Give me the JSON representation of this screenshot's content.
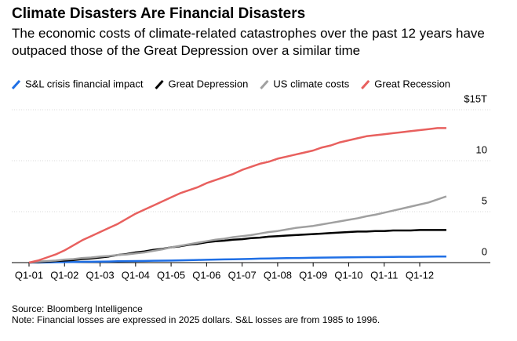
{
  "chart_data": {
    "type": "line",
    "title": "Climate Disasters Are Financial Disasters",
    "subtitle": "The economic costs of climate-related catastrophes over the past 12 years have outpaced those of the Great Depression over a similar time",
    "source": "Source: Bloomberg Intelligence",
    "note": "Note: Financial losses are expressed in 2025 dollars. S&L losses are from 1985 to 1996.",
    "categories": [
      "Q1-01",
      null,
      null,
      null,
      "Q1-02",
      null,
      null,
      null,
      "Q1-03",
      null,
      null,
      null,
      "Q1-04",
      null,
      null,
      null,
      "Q1-05",
      null,
      null,
      null,
      "Q1-06",
      null,
      null,
      null,
      "Q1-07",
      null,
      null,
      null,
      "Q1-08",
      null,
      null,
      null,
      "Q1-09",
      null,
      null,
      null,
      "Q1-10",
      null,
      null,
      null,
      "Q1-11",
      null,
      null,
      null,
      "Q1-12",
      null,
      null,
      null
    ],
    "series": [
      {
        "name": "S&L crisis financial impact",
        "color": "#1f6fe5",
        "values": [
          0,
          0.01,
          0.02,
          0.04,
          0.05,
          0.06,
          0.08,
          0.09,
          0.1,
          0.11,
          0.13,
          0.14,
          0.15,
          0.16,
          0.18,
          0.19,
          0.2,
          0.22,
          0.24,
          0.26,
          0.28,
          0.3,
          0.32,
          0.33,
          0.35,
          0.37,
          0.39,
          0.4,
          0.42,
          0.44,
          0.45,
          0.46,
          0.48,
          0.49,
          0.5,
          0.51,
          0.52,
          0.53,
          0.54,
          0.54,
          0.55,
          0.56,
          0.57,
          0.57,
          0.58,
          0.59,
          0.6,
          0.6
        ]
      },
      {
        "name": "Great Depression",
        "color": "#000000",
        "values": [
          0,
          0.05,
          0.1,
          0.15,
          0.2,
          0.25,
          0.35,
          0.4,
          0.5,
          0.6,
          0.75,
          0.85,
          1.0,
          1.1,
          1.25,
          1.35,
          1.5,
          1.6,
          1.75,
          1.85,
          2.0,
          2.1,
          2.15,
          2.25,
          2.3,
          2.4,
          2.45,
          2.55,
          2.6,
          2.65,
          2.7,
          2.75,
          2.8,
          2.85,
          2.9,
          2.95,
          3.0,
          3.05,
          3.05,
          3.1,
          3.1,
          3.15,
          3.15,
          3.15,
          3.2,
          3.2,
          3.2,
          3.2
        ]
      },
      {
        "name": "US climate costs",
        "color": "#a0a0a0",
        "values": [
          0,
          0.1,
          0.15,
          0.2,
          0.3,
          0.35,
          0.45,
          0.5,
          0.6,
          0.65,
          0.75,
          0.8,
          0.9,
          1.0,
          1.15,
          1.3,
          1.5,
          1.65,
          1.8,
          1.95,
          2.1,
          2.25,
          2.35,
          2.5,
          2.6,
          2.7,
          2.85,
          3.0,
          3.1,
          3.25,
          3.4,
          3.5,
          3.6,
          3.75,
          3.9,
          4.05,
          4.2,
          4.35,
          4.55,
          4.7,
          4.9,
          5.1,
          5.3,
          5.5,
          5.7,
          5.9,
          6.2,
          6.5
        ]
      },
      {
        "name": "Great Recession",
        "color": "#e8605e",
        "values": [
          0,
          0.2,
          0.5,
          0.8,
          1.2,
          1.7,
          2.2,
          2.6,
          3.0,
          3.4,
          3.8,
          4.3,
          4.8,
          5.2,
          5.6,
          6.0,
          6.4,
          6.8,
          7.1,
          7.4,
          7.8,
          8.1,
          8.4,
          8.7,
          9.1,
          9.4,
          9.7,
          9.9,
          10.2,
          10.4,
          10.6,
          10.8,
          11.0,
          11.3,
          11.5,
          11.8,
          12.0,
          12.2,
          12.4,
          12.5,
          12.6,
          12.7,
          12.8,
          12.9,
          13.0,
          13.1,
          13.2,
          13.2
        ]
      }
    ],
    "ylim": [
      0,
      15
    ],
    "yticks": [
      0,
      5,
      10,
      {
        "value": 15,
        "label": "$15T"
      }
    ],
    "grid": true
  }
}
